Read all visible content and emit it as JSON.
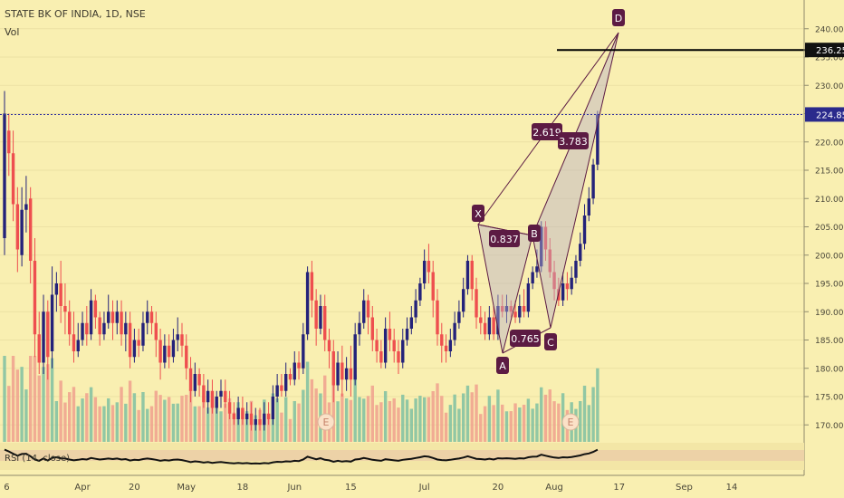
{
  "header": {
    "symbol": "STATE BK OF INDIA, 1D, NSE",
    "volume_label": "Vol"
  },
  "rsi_label": "RSI (14, close)",
  "chart_data": {
    "type": "candlestick",
    "title": "STATE BK OF INDIA, 1D, NSE",
    "ylim": [
      166,
      243
    ],
    "y_ticks": [
      "240.00",
      "235.00",
      "230.00",
      "225.00",
      "220.00",
      "215.00",
      "210.00",
      "205.00",
      "200.00",
      "195.00",
      "190.00",
      "185.00",
      "180.00",
      "175.00",
      "170.00"
    ],
    "y_tick_values": [
      240,
      235,
      230,
      225,
      220,
      215,
      210,
      205,
      200,
      195,
      190,
      185,
      180,
      175,
      170
    ],
    "x_ticks": [
      {
        "label": "6",
        "x": 0.5
      },
      {
        "label": "Apr",
        "x": 18
      },
      {
        "label": "20",
        "x": 30
      },
      {
        "label": "May",
        "x": 42
      },
      {
        "label": "18",
        "x": 55
      },
      {
        "label": "Jun",
        "x": 67
      },
      {
        "label": "15",
        "x": 80
      },
      {
        "label": "Jul",
        "x": 97
      },
      {
        "label": "20",
        "x": 114
      },
      {
        "label": "Aug",
        "x": 127
      },
      {
        "label": "17",
        "x": 142
      },
      {
        "label": "Sep",
        "x": 157
      },
      {
        "label": "14",
        "x": 168
      }
    ],
    "price_label": {
      "value": "224.85",
      "y": 224.85
    },
    "target_label": {
      "value": "236.25",
      "y": 236.25
    },
    "candles": [
      [
        203,
        225,
        200,
        229
      ],
      [
        222,
        218,
        214,
        225
      ],
      [
        218,
        209,
        206,
        222
      ],
      [
        209,
        201,
        197,
        212
      ],
      [
        200,
        208,
        198,
        212
      ],
      [
        208,
        209,
        204,
        214
      ],
      [
        210,
        199,
        195,
        212
      ],
      [
        199,
        186,
        182,
        203
      ],
      [
        186,
        181,
        179,
        190
      ],
      [
        181,
        190,
        179,
        193
      ],
      [
        190,
        182,
        178,
        192
      ],
      [
        183,
        193,
        180,
        198
      ],
      [
        193,
        195,
        190,
        197
      ],
      [
        195,
        191,
        188,
        199
      ],
      [
        191,
        190,
        186,
        195
      ],
      [
        190,
        186,
        184,
        192
      ],
      [
        186,
        183,
        181,
        190
      ],
      [
        183,
        185,
        182,
        188
      ],
      [
        185,
        188,
        184,
        190
      ],
      [
        188,
        186,
        184,
        191
      ],
      [
        186,
        192,
        185,
        194
      ],
      [
        192,
        189,
        187,
        193
      ],
      [
        189,
        186,
        184,
        190
      ],
      [
        186,
        188,
        185,
        190
      ],
      [
        188,
        190,
        187,
        193
      ],
      [
        190,
        188,
        185,
        192
      ],
      [
        188,
        190,
        186,
        192
      ],
      [
        190,
        186,
        184,
        192
      ],
      [
        186,
        188,
        183,
        190
      ],
      [
        188,
        182,
        180,
        190
      ],
      [
        182,
        185,
        181,
        187
      ],
      [
        185,
        184,
        182,
        187
      ],
      [
        184,
        188,
        183,
        190
      ],
      [
        188,
        190,
        186,
        192
      ],
      [
        190,
        188,
        186,
        191
      ],
      [
        188,
        185,
        182,
        190
      ],
      [
        185,
        181,
        178,
        187
      ],
      [
        181,
        184,
        180,
        186
      ],
      [
        184,
        182,
        180,
        186
      ],
      [
        182,
        185,
        181,
        187
      ],
      [
        185,
        186,
        183,
        189
      ],
      [
        186,
        184,
        182,
        188
      ],
      [
        184,
        180,
        178,
        186
      ],
      [
        180,
        176,
        174,
        182
      ],
      [
        176,
        179,
        175,
        181
      ],
      [
        179,
        177,
        175,
        180
      ],
      [
        177,
        174,
        173,
        179
      ],
      [
        174,
        176,
        172,
        178
      ],
      [
        176,
        173,
        172,
        178
      ],
      [
        173,
        175,
        172,
        176
      ],
      [
        175,
        176,
        173,
        178
      ],
      [
        176,
        174,
        173,
        178
      ],
      [
        174,
        172,
        171,
        176
      ],
      [
        172,
        171,
        170,
        174
      ],
      [
        171,
        173,
        170,
        175
      ],
      [
        173,
        171,
        170,
        175
      ],
      [
        171,
        172,
        170,
        174
      ],
      [
        172,
        170,
        169,
        174
      ],
      [
        170,
        171,
        169,
        173
      ],
      [
        171,
        170,
        169,
        173
      ],
      [
        170,
        172,
        169,
        174
      ],
      [
        172,
        171,
        170,
        174
      ],
      [
        171,
        175,
        170,
        177
      ],
      [
        175,
        177,
        174,
        179
      ],
      [
        177,
        176,
        175,
        179
      ],
      [
        176,
        179,
        175,
        181
      ],
      [
        179,
        178,
        177,
        180
      ],
      [
        178,
        181,
        177,
        183
      ],
      [
        181,
        180,
        178,
        183
      ],
      [
        180,
        186,
        179,
        188
      ],
      [
        186,
        197,
        185,
        198
      ],
      [
        197,
        192,
        189,
        199
      ],
      [
        192,
        187,
        184,
        194
      ],
      [
        187,
        191,
        186,
        193
      ],
      [
        191,
        185,
        183,
        193
      ],
      [
        185,
        183,
        180,
        187
      ],
      [
        183,
        177,
        174,
        185
      ],
      [
        177,
        181,
        176,
        183
      ],
      [
        181,
        178,
        175,
        184
      ],
      [
        178,
        180,
        176,
        182
      ],
      [
        180,
        178,
        175,
        184
      ],
      [
        178,
        186,
        177,
        188
      ],
      [
        186,
        188,
        184,
        190
      ],
      [
        188,
        192,
        187,
        194
      ],
      [
        192,
        189,
        186,
        193
      ],
      [
        189,
        185,
        183,
        191
      ],
      [
        185,
        183,
        181,
        187
      ],
      [
        183,
        181,
        180,
        185
      ],
      [
        181,
        187,
        180,
        189
      ],
      [
        187,
        185,
        183,
        190
      ],
      [
        185,
        183,
        181,
        187
      ],
      [
        183,
        181,
        179,
        185
      ],
      [
        181,
        185,
        180,
        187
      ],
      [
        185,
        187,
        184,
        189
      ],
      [
        187,
        189,
        186,
        191
      ],
      [
        189,
        192,
        188,
        194
      ],
      [
        192,
        195,
        191,
        196
      ],
      [
        195,
        199,
        194,
        201
      ],
      [
        199,
        197,
        195,
        202
      ],
      [
        197,
        192,
        189,
        199
      ],
      [
        192,
        186,
        184,
        194
      ],
      [
        186,
        184,
        181,
        188
      ],
      [
        184,
        183,
        181,
        186
      ],
      [
        183,
        185,
        182,
        187
      ],
      [
        185,
        188,
        184,
        190
      ],
      [
        188,
        190,
        187,
        192
      ],
      [
        190,
        194,
        189,
        196
      ],
      [
        194,
        199,
        193,
        200
      ],
      [
        199,
        194,
        192,
        200
      ],
      [
        194,
        189,
        187,
        196
      ],
      [
        189,
        188,
        186,
        191
      ],
      [
        188,
        186,
        185,
        190
      ],
      [
        186,
        189,
        185,
        191
      ],
      [
        189,
        186,
        185,
        191
      ],
      [
        186,
        191,
        185,
        193
      ],
      [
        191,
        190,
        189,
        193
      ],
      [
        190,
        191,
        188,
        193
      ],
      [
        191,
        190,
        189,
        192
      ],
      [
        190,
        189,
        188,
        192
      ],
      [
        189,
        191,
        188,
        193
      ],
      [
        191,
        190,
        189,
        194
      ],
      [
        190,
        195,
        189,
        196
      ],
      [
        195,
        197,
        194,
        198
      ],
      [
        197,
        198,
        196,
        201
      ],
      [
        198,
        205,
        197,
        206
      ],
      [
        205,
        201,
        199,
        206
      ],
      [
        201,
        197,
        196,
        203
      ],
      [
        197,
        194,
        192,
        199
      ],
      [
        194,
        192,
        191,
        196
      ],
      [
        192,
        195,
        191,
        197
      ],
      [
        195,
        194,
        192,
        197
      ],
      [
        194,
        196,
        193,
        198
      ],
      [
        196,
        199,
        195,
        200
      ],
      [
        199,
        202,
        198,
        204
      ],
      [
        202,
        207,
        201,
        209
      ],
      [
        207,
        210,
        206,
        212
      ],
      [
        210,
        216,
        209,
        217
      ],
      [
        216,
        224.85,
        215,
        225.5
      ]
    ]
  }
}
